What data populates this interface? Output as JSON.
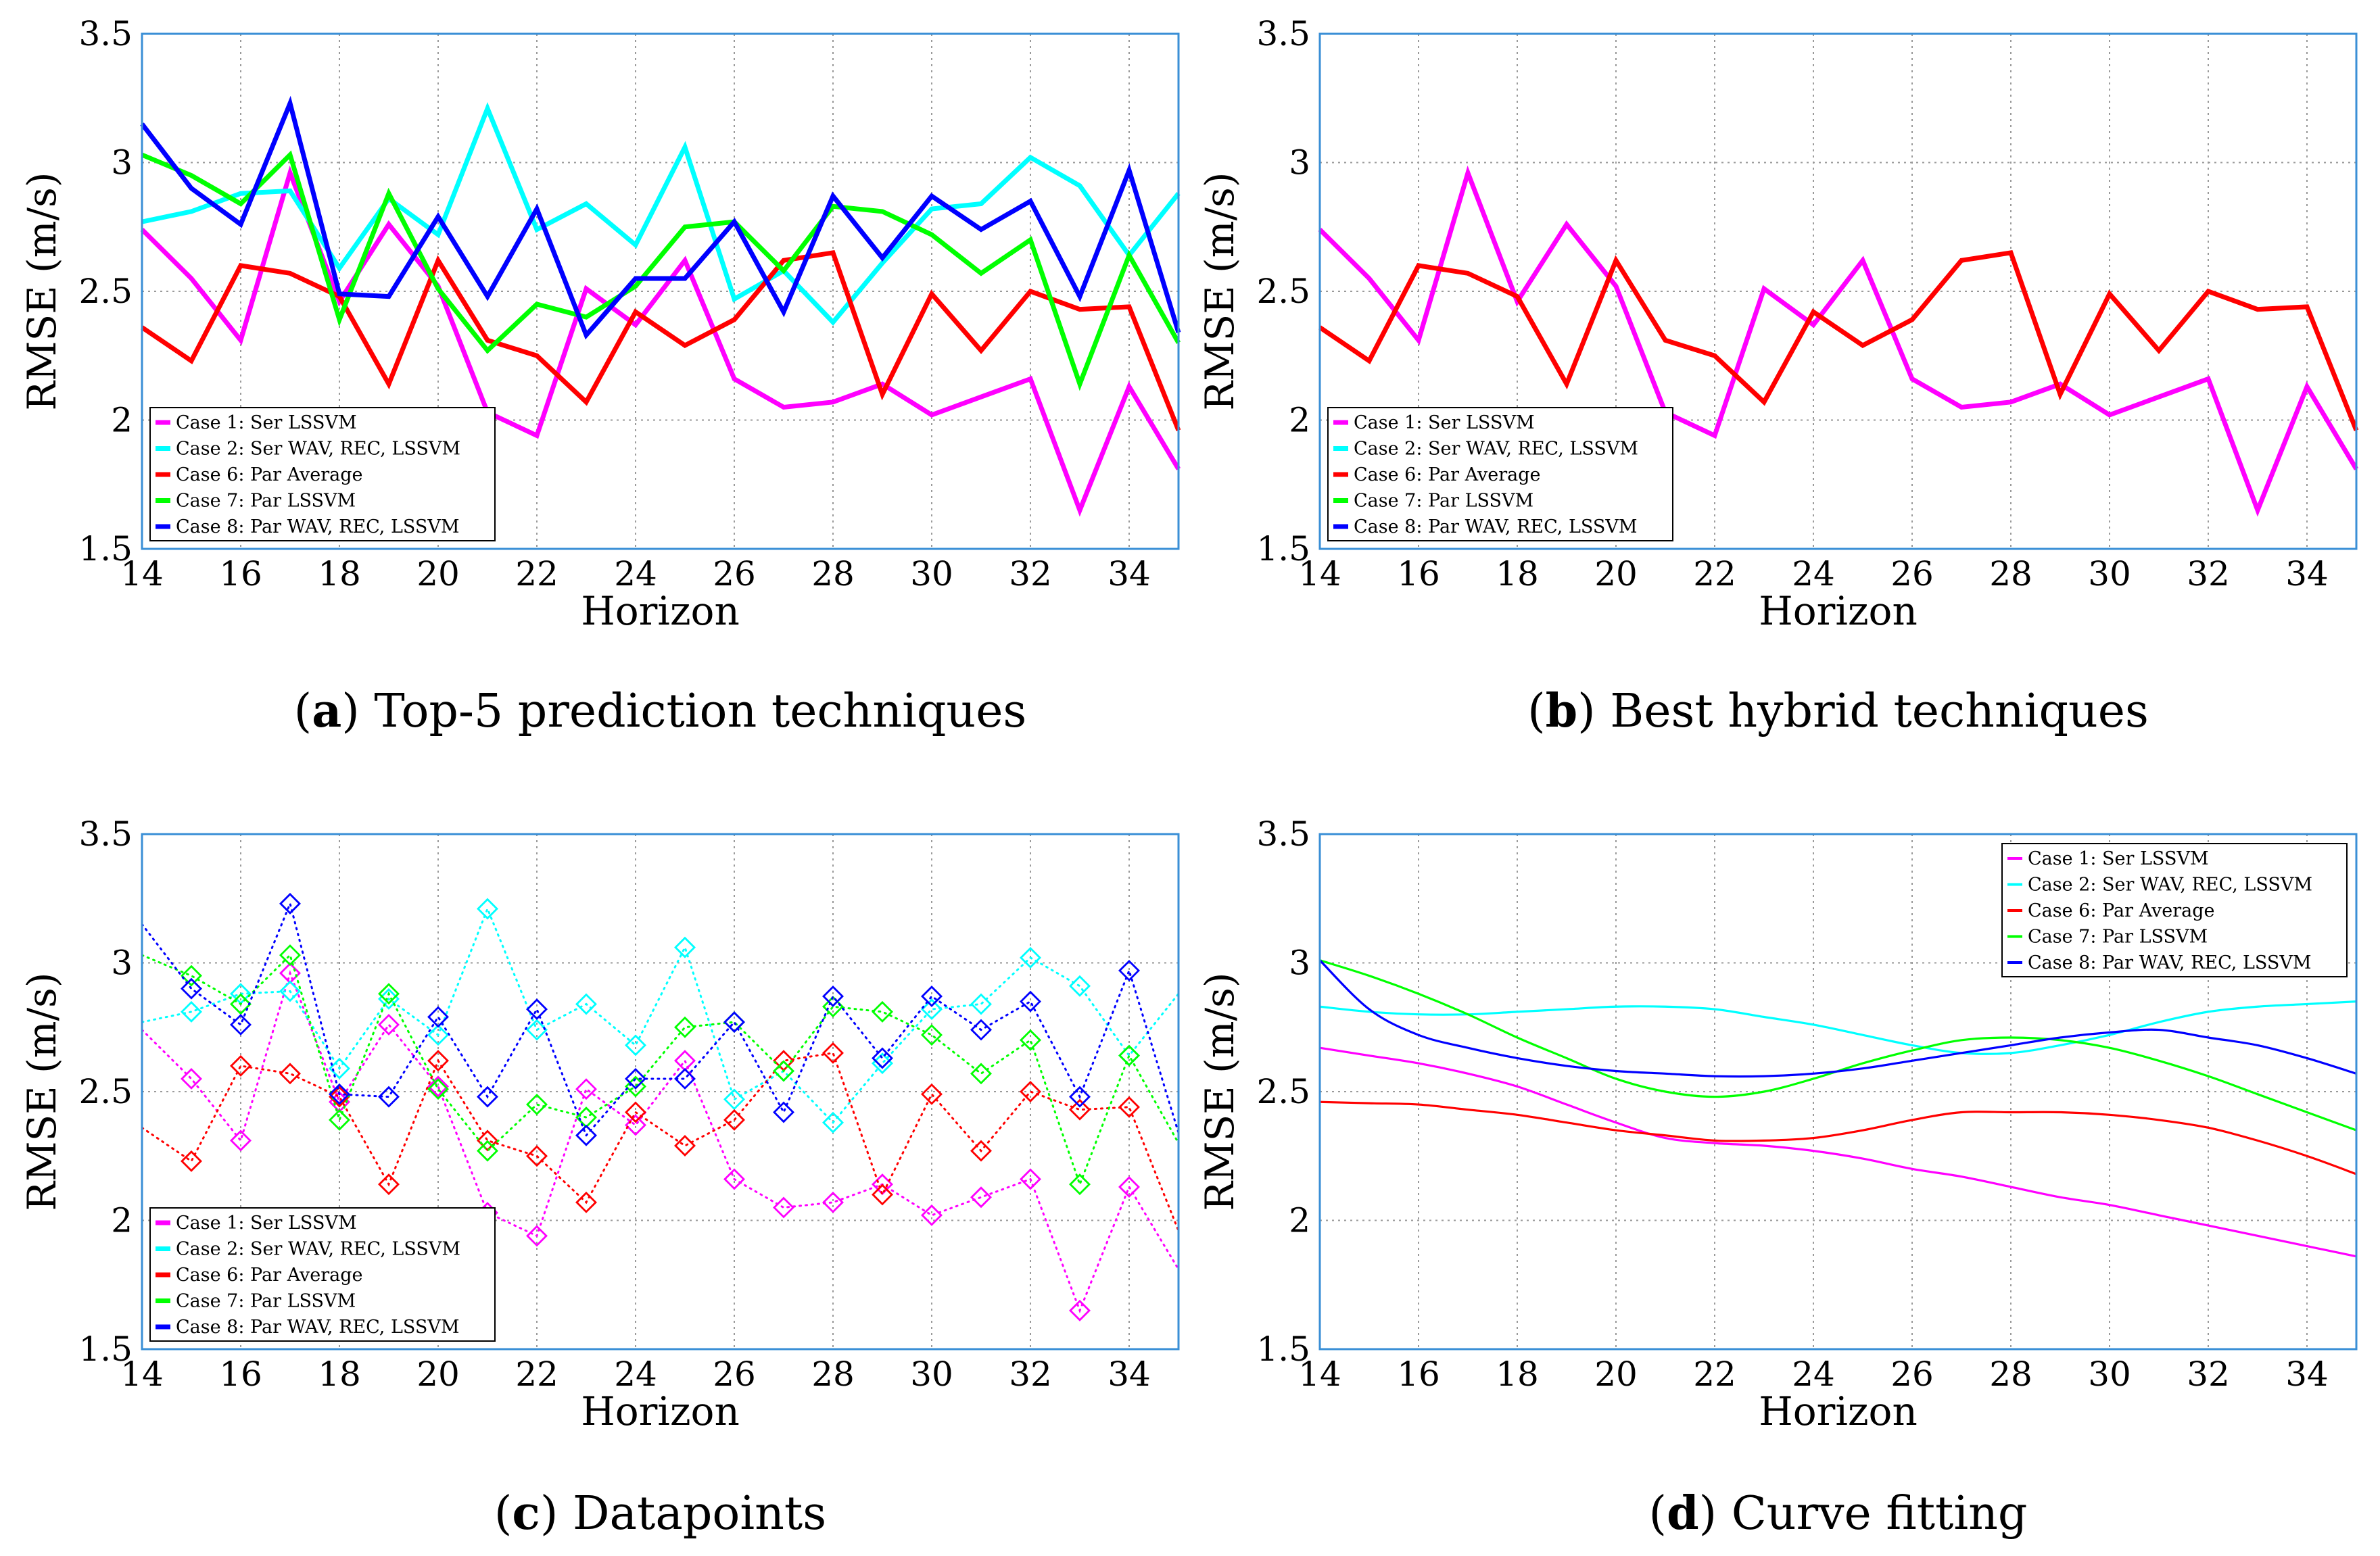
{
  "x": [
    14,
    15,
    16,
    17,
    18,
    19,
    20,
    21,
    22,
    23,
    24,
    25,
    26,
    27,
    28,
    29,
    30,
    31,
    32,
    33,
    34,
    35
  ],
  "series_style": [
    {
      "key": "case1",
      "name": "Case 1: Ser LSSVM",
      "color": "#ff00ff"
    },
    {
      "key": "case2",
      "name": "Case 2: Ser WAV, REC, LSSVM",
      "color": "#00ffff"
    },
    {
      "key": "case6",
      "name": "Case 6: Par Average",
      "color": "#ff0000"
    },
    {
      "key": "case7",
      "name": "Case 7: Par LSSVM",
      "color": "#00ff00"
    },
    {
      "key": "case8",
      "name": "Case 8: Par WAV, REC, LSSVM",
      "color": "#0000ff"
    }
  ],
  "chart_data": [
    {
      "type": "line",
      "id": "a",
      "caption_letter": "a",
      "caption_text": "Top-5 prediction techniques",
      "title": "(a) Top-5 prediction techniques",
      "xlabel": "Horizon",
      "ylabel": "RMSE (m/s)",
      "xlim": [
        14,
        35
      ],
      "ylim": [
        1.5,
        3.5
      ],
      "xticks": [
        14,
        16,
        18,
        20,
        22,
        24,
        26,
        28,
        30,
        32,
        34
      ],
      "yticks": [
        1.5,
        2,
        2.5,
        3,
        3.5
      ],
      "ytick_labels": [
        "1.5",
        "2",
        "2.5",
        "3",
        "3.5"
      ],
      "grid": true,
      "legend_position": "bottom-left",
      "series": [
        {
          "name": "Case 1: Ser LSSVM",
          "values": [
            2.74,
            2.55,
            2.31,
            2.96,
            2.46,
            2.76,
            2.52,
            2.03,
            1.94,
            2.51,
            2.37,
            2.62,
            2.16,
            2.05,
            2.07,
            2.14,
            2.02,
            2.09,
            2.16,
            1.65,
            2.13,
            1.81
          ]
        },
        {
          "name": "Case 2: Ser WAV, REC, LSSVM",
          "values": [
            2.77,
            2.81,
            2.88,
            2.89,
            2.59,
            2.86,
            2.72,
            3.21,
            2.74,
            2.84,
            2.68,
            3.06,
            2.47,
            2.58,
            2.38,
            2.61,
            2.82,
            2.84,
            3.02,
            2.91,
            2.64,
            2.88
          ]
        },
        {
          "name": "Case 6: Par Average",
          "values": [
            2.36,
            2.23,
            2.6,
            2.57,
            2.48,
            2.14,
            2.62,
            2.31,
            2.25,
            2.07,
            2.42,
            2.29,
            2.39,
            2.62,
            2.65,
            2.1,
            2.49,
            2.27,
            2.5,
            2.43,
            2.44,
            1.96
          ]
        },
        {
          "name": "Case 7: Par LSSVM",
          "values": [
            3.03,
            2.95,
            2.84,
            3.03,
            2.39,
            2.88,
            2.51,
            2.27,
            2.45,
            2.4,
            2.52,
            2.75,
            2.77,
            2.58,
            2.83,
            2.81,
            2.72,
            2.57,
            2.7,
            2.14,
            2.64,
            2.3
          ]
        },
        {
          "name": "Case 8: Par WAV, REC, LSSVM",
          "values": [
            3.15,
            2.9,
            2.76,
            3.23,
            2.49,
            2.48,
            2.79,
            2.48,
            2.82,
            2.33,
            2.55,
            2.55,
            2.77,
            2.42,
            2.87,
            2.63,
            2.87,
            2.74,
            2.85,
            2.48,
            2.97,
            2.34
          ]
        }
      ]
    },
    {
      "type": "line",
      "id": "b",
      "caption_letter": "b",
      "caption_text": "Best hybrid techniques",
      "title": "(b) Best hybrid techniques",
      "xlabel": "Horizon",
      "ylabel": "RMSE (m/s)",
      "xlim": [
        14,
        35
      ],
      "ylim": [
        1.5,
        3.5
      ],
      "xticks": [
        14,
        16,
        18,
        20,
        22,
        24,
        26,
        28,
        30,
        32,
        34
      ],
      "yticks": [
        1.5,
        2,
        2.5,
        3,
        3.5
      ],
      "ytick_labels": [
        "1.5",
        "2",
        "2.5",
        "3",
        "3.5"
      ],
      "grid": true,
      "legend_position": "bottom-left",
      "series": [
        {
          "name": "Case 1: Ser LSSVM",
          "values": [
            2.74,
            2.55,
            2.31,
            2.96,
            2.46,
            2.76,
            2.52,
            2.03,
            1.94,
            2.51,
            2.37,
            2.62,
            2.16,
            2.05,
            2.07,
            2.14,
            2.02,
            2.09,
            2.16,
            1.65,
            2.13,
            1.81
          ]
        },
        {
          "name": "Case 6: Par Average",
          "values": [
            2.36,
            2.23,
            2.6,
            2.57,
            2.48,
            2.14,
            2.62,
            2.31,
            2.25,
            2.07,
            2.42,
            2.29,
            2.39,
            2.62,
            2.65,
            2.1,
            2.49,
            2.27,
            2.5,
            2.43,
            2.44,
            1.96
          ]
        }
      ]
    },
    {
      "type": "scatter",
      "id": "c",
      "caption_letter": "c",
      "caption_text": "Datapoints",
      "title": "(c) Datapoints",
      "xlabel": "Horizon",
      "ylabel": "RMSE (m/s)",
      "xlim": [
        14,
        35
      ],
      "ylim": [
        1.5,
        3.5
      ],
      "xticks": [
        14,
        16,
        18,
        20,
        22,
        24,
        26,
        28,
        30,
        32,
        34
      ],
      "yticks": [
        1.5,
        2,
        2.5,
        3,
        3.5
      ],
      "ytick_labels": [
        "1.5",
        "2",
        "2.5",
        "3",
        "3.5"
      ],
      "grid": true,
      "legend_position": "bottom-left",
      "marker": "diamond",
      "line_style": "dotted",
      "series": [
        {
          "name": "Case 1: Ser LSSVM",
          "values": [
            2.74,
            2.55,
            2.31,
            2.96,
            2.46,
            2.76,
            2.52,
            2.03,
            1.94,
            2.51,
            2.37,
            2.62,
            2.16,
            2.05,
            2.07,
            2.14,
            2.02,
            2.09,
            2.16,
            1.65,
            2.13,
            1.81
          ]
        },
        {
          "name": "Case 2: Ser WAV, REC, LSSVM",
          "values": [
            2.77,
            2.81,
            2.88,
            2.89,
            2.59,
            2.86,
            2.72,
            3.21,
            2.74,
            2.84,
            2.68,
            3.06,
            2.47,
            2.58,
            2.38,
            2.61,
            2.82,
            2.84,
            3.02,
            2.91,
            2.64,
            2.88
          ]
        },
        {
          "name": "Case 6: Par Average",
          "values": [
            2.36,
            2.23,
            2.6,
            2.57,
            2.48,
            2.14,
            2.62,
            2.31,
            2.25,
            2.07,
            2.42,
            2.29,
            2.39,
            2.62,
            2.65,
            2.1,
            2.49,
            2.27,
            2.5,
            2.43,
            2.44,
            1.96
          ]
        },
        {
          "name": "Case 7: Par LSSVM",
          "values": [
            3.03,
            2.95,
            2.84,
            3.03,
            2.39,
            2.88,
            2.51,
            2.27,
            2.45,
            2.4,
            2.52,
            2.75,
            2.77,
            2.58,
            2.83,
            2.81,
            2.72,
            2.57,
            2.7,
            2.14,
            2.64,
            2.3
          ]
        },
        {
          "name": "Case 8: Par WAV, REC, LSSVM",
          "values": [
            3.15,
            2.9,
            2.76,
            3.23,
            2.49,
            2.48,
            2.79,
            2.48,
            2.82,
            2.33,
            2.55,
            2.55,
            2.77,
            2.42,
            2.87,
            2.63,
            2.87,
            2.74,
            2.85,
            2.48,
            2.97,
            2.34
          ]
        }
      ]
    },
    {
      "type": "line",
      "id": "d",
      "caption_letter": "d",
      "caption_text": "Curve fitting",
      "title": "(d) Curve fitting",
      "xlabel": "Horizon",
      "ylabel": "RMSE (m/s)",
      "xlim": [
        14,
        35
      ],
      "ylim": [
        1.5,
        3.5
      ],
      "xticks": [
        14,
        16,
        18,
        20,
        22,
        24,
        26,
        28,
        30,
        32,
        34
      ],
      "yticks": [
        1.5,
        2,
        2.5,
        3,
        3.5
      ],
      "ytick_labels": [
        "1.5",
        "2",
        "2.5",
        "3",
        "3.5"
      ],
      "grid": true,
      "legend_position": "top-right",
      "smooth": true,
      "thin": true,
      "series": [
        {
          "name": "Case 1: Ser LSSVM",
          "values": [
            2.67,
            2.64,
            2.61,
            2.57,
            2.52,
            2.45,
            2.38,
            2.32,
            2.3,
            2.29,
            2.27,
            2.24,
            2.2,
            2.17,
            2.13,
            2.09,
            2.06,
            2.02,
            1.98,
            1.94,
            1.9,
            1.86
          ]
        },
        {
          "name": "Case 2: Ser WAV, REC, LSSVM",
          "values": [
            2.83,
            2.81,
            2.8,
            2.8,
            2.81,
            2.82,
            2.83,
            2.83,
            2.82,
            2.79,
            2.76,
            2.72,
            2.68,
            2.65,
            2.65,
            2.68,
            2.72,
            2.77,
            2.81,
            2.83,
            2.84,
            2.85
          ]
        },
        {
          "name": "Case 6: Par Average",
          "values": [
            2.46,
            2.455,
            2.45,
            2.43,
            2.41,
            2.38,
            2.35,
            2.33,
            2.31,
            2.31,
            2.32,
            2.35,
            2.39,
            2.42,
            2.42,
            2.42,
            2.41,
            2.39,
            2.36,
            2.31,
            2.25,
            2.18
          ]
        },
        {
          "name": "Case 7: Par LSSVM",
          "values": [
            3.01,
            2.95,
            2.88,
            2.8,
            2.71,
            2.63,
            2.55,
            2.5,
            2.48,
            2.5,
            2.55,
            2.61,
            2.66,
            2.7,
            2.71,
            2.7,
            2.67,
            2.62,
            2.56,
            2.49,
            2.42,
            2.35
          ]
        },
        {
          "name": "Case 8: Par WAV, REC, LSSVM",
          "values": [
            3.01,
            2.82,
            2.72,
            2.67,
            2.63,
            2.6,
            2.58,
            2.57,
            2.56,
            2.56,
            2.57,
            2.59,
            2.62,
            2.65,
            2.68,
            2.71,
            2.73,
            2.74,
            2.71,
            2.68,
            2.63,
            2.57
          ]
        }
      ]
    }
  ]
}
